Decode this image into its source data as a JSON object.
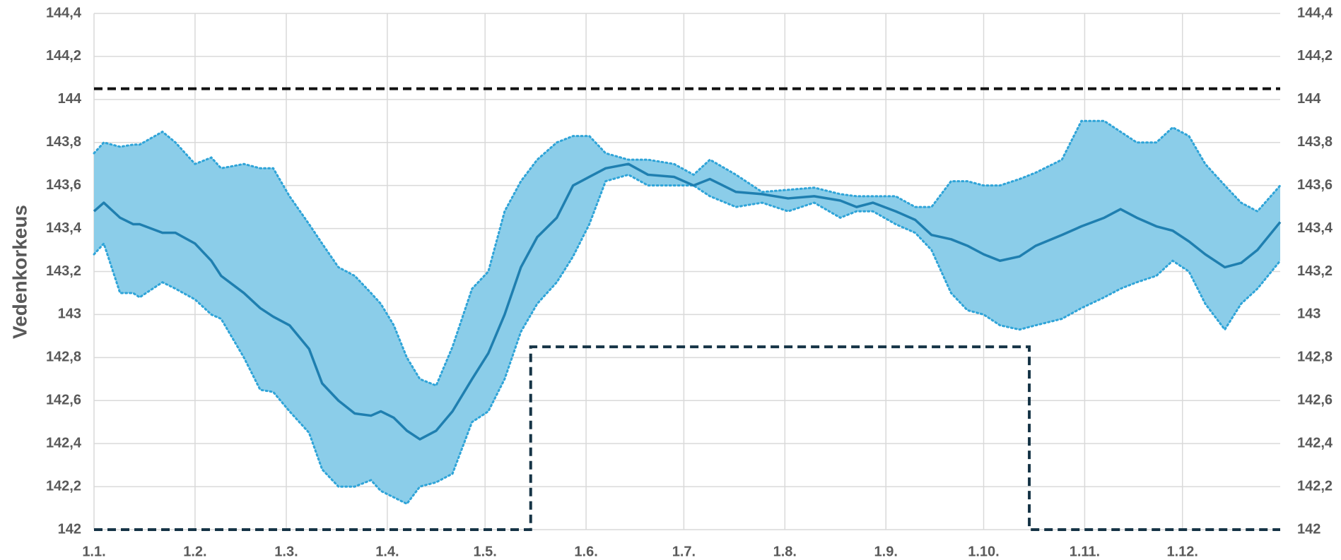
{
  "chart_data": {
    "type": "band-line",
    "y_label": "Vedenkorkeus",
    "xlim": [
      1,
      365
    ],
    "xticks": [
      {
        "value": 1,
        "label": "1.1."
      },
      {
        "value": 32,
        "label": "1.2."
      },
      {
        "value": 60,
        "label": "1.3."
      },
      {
        "value": 91,
        "label": "1.4."
      },
      {
        "value": 121,
        "label": "1.5."
      },
      {
        "value": 152,
        "label": "1.6."
      },
      {
        "value": 182,
        "label": "1.7."
      },
      {
        "value": 213,
        "label": "1.8."
      },
      {
        "value": 244,
        "label": "1.9."
      },
      {
        "value": 274,
        "label": "1.10."
      },
      {
        "value": 305,
        "label": "1.11."
      },
      {
        "value": 335,
        "label": "1.12."
      }
    ],
    "ylim": [
      142,
      144.4
    ],
    "yticks": [
      142,
      {
        "value": 142.2,
        "label": "142,2"
      },
      {
        "value": 142.4,
        "label": "142,4"
      },
      {
        "value": 142.6,
        "label": "142,6"
      },
      {
        "value": 142.8,
        "label": "142,8"
      },
      143,
      {
        "value": 143.2,
        "label": "143,2"
      },
      {
        "value": 143.4,
        "label": "143,4"
      },
      {
        "value": 143.6,
        "label": "143,6"
      },
      {
        "value": 143.8,
        "label": "143,8"
      },
      144,
      {
        "value": 144.2,
        "label": "144,2"
      },
      {
        "value": 144.4,
        "label": "144,4"
      }
    ],
    "y2lim": [
      142,
      144.4
    ],
    "y2ticks": [
      142,
      {
        "value": 142.2,
        "label": "142,2"
      },
      {
        "value": 142.4,
        "label": "142,4"
      },
      {
        "value": 142.6,
        "label": "142,6"
      },
      {
        "value": 142.8,
        "label": "142,8"
      },
      143,
      {
        "value": 143.2,
        "label": "143,2"
      },
      {
        "value": 143.4,
        "label": "143,4"
      },
      {
        "value": 143.6,
        "label": "143,6"
      },
      {
        "value": 143.8,
        "label": "143,8"
      },
      144,
      {
        "value": 144.2,
        "label": "144,2"
      },
      {
        "value": 144.4,
        "label": "144,4"
      }
    ],
    "grid": true,
    "x": [
      1,
      4,
      9,
      13,
      15,
      22,
      26,
      32,
      37,
      40,
      47,
      52,
      56,
      61,
      67,
      71,
      76,
      81,
      86,
      89,
      93,
      97,
      101,
      106,
      111,
      117,
      122,
      127,
      132,
      137,
      143,
      148,
      153,
      158,
      165,
      171,
      179,
      185,
      190,
      198,
      206,
      214,
      222,
      230,
      235,
      240,
      247,
      253,
      258,
      264,
      269,
      274,
      279,
      285,
      290,
      298,
      304,
      311,
      316,
      321,
      327,
      332,
      337,
      342,
      348,
      353,
      358,
      365
    ],
    "band": {
      "color": "#8bcde9",
      "edge_color": "#2fa4d8",
      "upper": [
        143.75,
        143.8,
        143.78,
        143.79,
        143.79,
        143.85,
        143.8,
        143.7,
        143.73,
        143.68,
        143.7,
        143.68,
        143.68,
        143.55,
        143.42,
        143.33,
        143.22,
        143.18,
        143.1,
        143.05,
        142.95,
        142.8,
        142.7,
        142.67,
        142.85,
        143.12,
        143.2,
        143.48,
        143.62,
        143.72,
        143.8,
        143.83,
        143.83,
        143.75,
        143.72,
        143.72,
        143.7,
        143.65,
        143.72,
        143.65,
        143.57,
        143.58,
        143.59,
        143.56,
        143.55,
        143.55,
        143.55,
        143.5,
        143.5,
        143.62,
        143.62,
        143.6,
        143.6,
        143.63,
        143.66,
        143.72,
        143.9,
        143.9,
        143.85,
        143.8,
        143.8,
        143.87,
        143.83,
        143.7,
        143.6,
        143.52,
        143.48,
        143.6
      ],
      "lower": [
        143.28,
        143.33,
        143.1,
        143.1,
        143.08,
        143.15,
        143.12,
        143.07,
        143,
        142.98,
        142.8,
        142.65,
        142.64,
        142.55,
        142.45,
        142.28,
        142.2,
        142.2,
        142.23,
        142.18,
        142.15,
        142.12,
        142.2,
        142.22,
        142.26,
        142.5,
        142.55,
        142.7,
        142.92,
        143.05,
        143.15,
        143.27,
        143.42,
        143.62,
        143.65,
        143.6,
        143.6,
        143.6,
        143.55,
        143.5,
        143.52,
        143.48,
        143.52,
        143.45,
        143.48,
        143.48,
        143.42,
        143.38,
        143.3,
        143.1,
        143.02,
        143,
        142.95,
        142.93,
        142.95,
        142.98,
        143.03,
        143.08,
        143.12,
        143.15,
        143.18,
        143.25,
        143.2,
        143.05,
        142.93,
        143.05,
        143.12,
        143.25
      ]
    },
    "series": [
      {
        "color": "#1f7fb0",
        "values": [
          143.48,
          143.52,
          143.45,
          143.42,
          143.42,
          143.38,
          143.38,
          143.33,
          143.25,
          143.18,
          143.1,
          143.03,
          142.99,
          142.95,
          142.84,
          142.68,
          142.6,
          142.54,
          142.53,
          142.55,
          142.52,
          142.46,
          142.42,
          142.46,
          142.55,
          142.7,
          142.82,
          143,
          143.22,
          143.36,
          143.45,
          143.6,
          143.64,
          143.68,
          143.7,
          143.65,
          143.64,
          143.6,
          143.63,
          143.57,
          143.56,
          143.54,
          143.55,
          143.53,
          143.5,
          143.52,
          143.48,
          143.44,
          143.37,
          143.35,
          143.32,
          143.28,
          143.25,
          143.27,
          143.32,
          143.37,
          143.41,
          143.45,
          143.49,
          143.45,
          143.41,
          143.39,
          143.34,
          143.28,
          143.22,
          143.24,
          143.3,
          143.43
        ]
      }
    ],
    "lines": [
      {
        "color": "#111111",
        "x": [
          1,
          365
        ],
        "values": [
          144.05,
          144.05
        ]
      },
      {
        "color": "#163446",
        "x": [
          1,
          135,
          135,
          288,
          288,
          365
        ],
        "values": [
          142,
          142,
          142.85,
          142.85,
          142,
          142
        ]
      }
    ]
  }
}
